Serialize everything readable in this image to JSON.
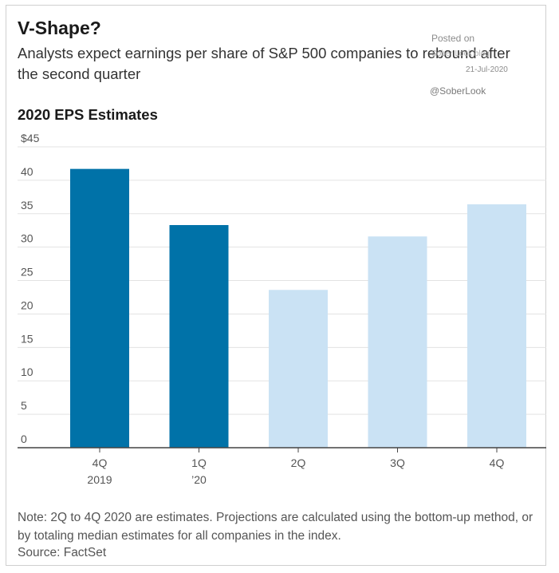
{
  "header": {
    "title": "V-Shape?",
    "subtitle": "Analysts expect earnings per share of S&P 500 companies to rebound after the second quarter"
  },
  "watermark": {
    "posted_on": "Posted on",
    "blog": "Sober Look blog",
    "date": "21-Jul-2020",
    "handle": "@SoberLook"
  },
  "colors": {
    "actual": "#0072a8",
    "estimate": "#cae2f4",
    "grid": "#e3e3e3",
    "axis": "#444444",
    "tick_text": "#555555"
  },
  "chart_data": {
    "type": "bar",
    "title": "2020 EPS Estimates",
    "categories": [
      "4Q\n2019",
      "1Q\n'20",
      "2Q",
      "3Q",
      "4Q"
    ],
    "category_lines": [
      [
        "4Q",
        "2019"
      ],
      [
        "1Q",
        "’20"
      ],
      [
        "2Q"
      ],
      [
        "3Q"
      ],
      [
        "4Q"
      ]
    ],
    "values": [
      41.7,
      33.3,
      23.6,
      31.6,
      36.4
    ],
    "estimated": [
      false,
      false,
      true,
      true,
      true
    ],
    "ylim": [
      0,
      45
    ],
    "yticks": [
      0,
      5,
      10,
      15,
      20,
      25,
      30,
      35,
      40,
      45
    ],
    "ytick_labels": [
      "0",
      "5",
      "10",
      "15",
      "20",
      "25",
      "30",
      "35",
      "40",
      "$45"
    ],
    "xlabel": "",
    "ylabel": "",
    "grid": true
  },
  "footer": {
    "note": "Note: 2Q to 4Q 2020 are estimates. Projections are calculated using the bottom-up method, or by totaling median estimates for all companies in the index.",
    "source": "Source: FactSet"
  }
}
